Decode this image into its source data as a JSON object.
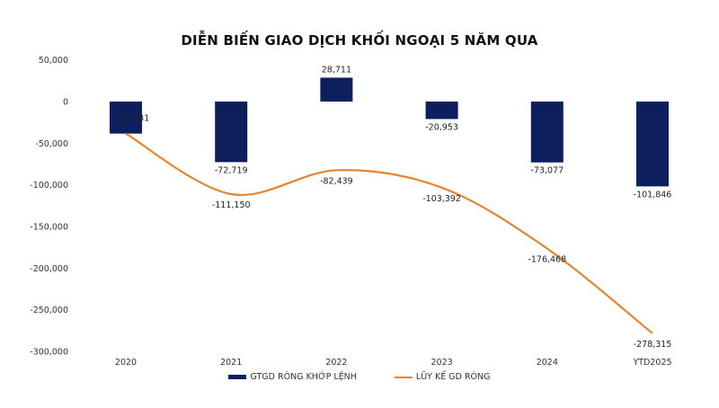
{
  "chart_data": {
    "type": "bar+line",
    "title": "DIỄN BIẾN GIAO DỊCH KHỐI NGOẠI 5 NĂM QUA",
    "categories": [
      "2020",
      "2021",
      "2022",
      "2023",
      "2024",
      "YTD2025"
    ],
    "series": [
      {
        "name": "GTGD RÒNG KHỚP LỆNH",
        "type": "bar",
        "color": "#0d1f5c",
        "values": [
          -38431,
          -72719,
          28711,
          -20953,
          -73077,
          -101846
        ],
        "labels": [
          "-38,431",
          "-72,719",
          "28,711",
          "-20,953",
          "-73,077",
          "-101,846"
        ]
      },
      {
        "name": "LŨY KẾ GD RÒNG",
        "type": "line",
        "color": "#e6852f",
        "smooth": true,
        "values": [
          -38431,
          -111150,
          -82439,
          -103392,
          -176468,
          -278315
        ],
        "labels": [
          "-38,431",
          "-111,150",
          "-82,439",
          "-103,392",
          "-176,468",
          "-278,315"
        ]
      }
    ],
    "ylim": [
      -300000,
      50000
    ],
    "yticks": [
      50000,
      0,
      -50000,
      -100000,
      -150000,
      -200000,
      -250000,
      -300000
    ],
    "ytick_labels": [
      "50,000",
      "0",
      "-50,000",
      "-100,000",
      "-150,000",
      "-200,000",
      "-250,000",
      "-300,000"
    ],
    "grid": false,
    "legend": "bottom"
  }
}
